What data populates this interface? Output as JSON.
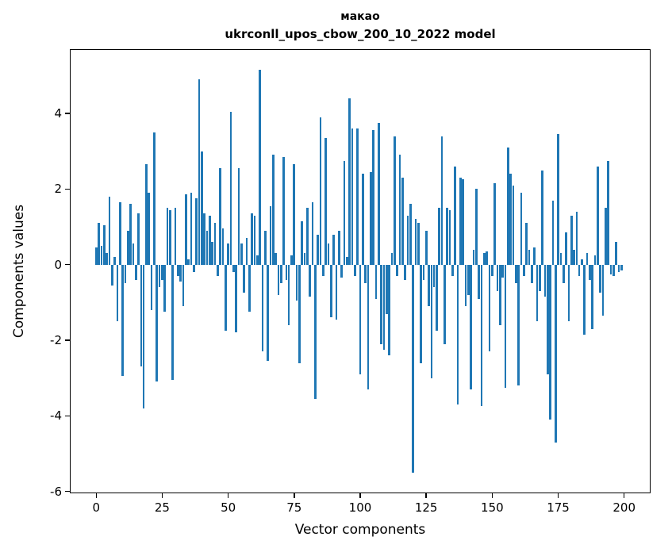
{
  "chart_data": {
    "type": "bar",
    "title_line1": "макао",
    "title_line2": "ukrconll_upos_cbow_200_10_2022 model",
    "title": "макао\nukrconll_upos_cbow_200_10_2022 model",
    "xlabel": "Vector components",
    "ylabel": "Components values",
    "xlim": [
      -10,
      210
    ],
    "ylim": [
      -6.05,
      5.7
    ],
    "x_ticks": [
      0,
      25,
      50,
      75,
      100,
      125,
      150,
      175,
      200
    ],
    "y_ticks": [
      -6,
      -4,
      -2,
      0,
      2,
      4
    ],
    "bar_color": "#1f77b4",
    "grid": false,
    "legend": "none",
    "values": [
      0.45,
      1.1,
      0.5,
      1.05,
      0.3,
      1.8,
      -0.55,
      0.2,
      -1.5,
      1.65,
      -2.95,
      -0.5,
      0.9,
      1.6,
      0.55,
      -0.4,
      1.35,
      -2.7,
      -3.8,
      2.65,
      1.9,
      -1.2,
      3.5,
      -3.1,
      -0.6,
      -0.4,
      -1.25,
      1.5,
      1.45,
      -3.05,
      1.5,
      -0.3,
      -0.45,
      -1.1,
      1.85,
      0.15,
      1.9,
      -0.2,
      1.75,
      4.9,
      3.0,
      1.35,
      0.9,
      1.3,
      0.6,
      1.1,
      -0.3,
      2.55,
      0.95,
      -1.75,
      0.55,
      4.05,
      -0.2,
      -1.8,
      2.55,
      0.55,
      -0.75,
      0.7,
      -1.25,
      1.35,
      1.3,
      0.25,
      5.15,
      -2.3,
      0.9,
      -2.55,
      1.55,
      2.9,
      0.3,
      -0.8,
      -0.5,
      2.85,
      -0.4,
      -1.6,
      0.25,
      2.65,
      -0.95,
      -2.6,
      1.15,
      0.3,
      1.5,
      -0.85,
      1.65,
      -3.55,
      0.8,
      3.9,
      -0.3,
      3.35,
      0.55,
      -1.4,
      0.8,
      -1.45,
      0.9,
      -0.35,
      2.75,
      0.2,
      4.4,
      3.6,
      -0.3,
      3.6,
      -2.9,
      2.4,
      -0.5,
      -3.3,
      2.45,
      3.55,
      -0.9,
      3.75,
      -2.1,
      -2.25,
      -1.3,
      -2.4,
      0.3,
      3.4,
      -0.3,
      2.9,
      2.3,
      -0.4,
      1.3,
      1.6,
      -5.5,
      1.2,
      1.1,
      -2.6,
      -0.4,
      0.9,
      -1.1,
      -3.0,
      -0.6,
      -1.75,
      1.5,
      3.4,
      -2.1,
      1.5,
      1.45,
      -0.3,
      2.6,
      -3.7,
      2.3,
      2.25,
      -1.1,
      -0.8,
      -3.3,
      0.4,
      2.0,
      -0.9,
      -3.75,
      0.3,
      0.35,
      -2.3,
      -0.3,
      2.15,
      -0.7,
      -1.6,
      -0.35,
      -3.25,
      3.1,
      2.4,
      2.1,
      -0.5,
      -3.2,
      1.9,
      -0.3,
      1.1,
      0.4,
      -0.5,
      0.45,
      -1.5,
      -0.7,
      2.5,
      -0.85,
      -2.9,
      -4.1,
      1.7,
      -4.7,
      3.45,
      0.3,
      -0.5,
      0.85,
      -1.5,
      1.3,
      0.4,
      1.4,
      -0.3,
      0.15,
      -1.85,
      0.3,
      -0.4,
      -1.7,
      0.25,
      2.6,
      -0.75,
      -1.35,
      1.5,
      2.75,
      -0.25,
      -0.3,
      0.6,
      -0.2,
      -0.15
    ]
  }
}
